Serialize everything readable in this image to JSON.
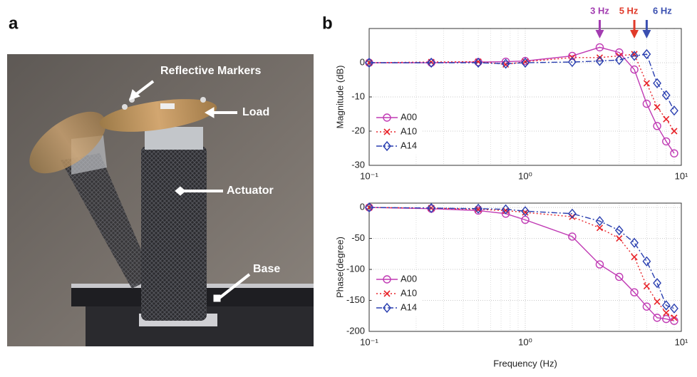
{
  "panel_labels": [
    "a",
    "b"
  ],
  "photo": {
    "labels": [
      "Reflective Markers",
      "Load",
      "Actuator",
      "Base"
    ]
  },
  "chart_data": [
    {
      "type": "line",
      "ylabel": "Magnitude (dB)",
      "xscale": "log",
      "grid": true,
      "legend": "lower left",
      "x": [
        0.1,
        0.25,
        0.5,
        0.75,
        1,
        2,
        3,
        4,
        5,
        6,
        7,
        8,
        9
      ],
      "xlim": [
        0.1,
        10
      ],
      "xticks": [
        {
          "value": 0.1,
          "label": "10⁻¹"
        },
        {
          "value": 1,
          "label": "10⁰"
        },
        {
          "value": 10,
          "label": "10¹"
        }
      ],
      "ylim": [
        -30,
        10
      ],
      "yticks": [
        -30,
        -20,
        -10,
        0
      ],
      "annotations": [
        {
          "text": "3 Hz",
          "x": 3,
          "color": "#a23cb0"
        },
        {
          "text": "5 Hz",
          "x": 5,
          "color": "#e03a2a"
        },
        {
          "text": "6 Hz",
          "x": 6,
          "color": "#3a4fb0"
        }
      ],
      "series": [
        {
          "name": "A00",
          "color": "#c03ab4",
          "marker": "circle",
          "linestyle": "solid",
          "values": [
            0,
            0,
            0.2,
            0.3,
            0.5,
            2,
            4.5,
            3,
            -2,
            -12,
            -18.5,
            -23,
            -26.5
          ]
        },
        {
          "name": "A10",
          "color": "#e8242a",
          "marker": "x",
          "linestyle": "dotted",
          "values": [
            0,
            0.2,
            0.3,
            -0.5,
            0.3,
            1.5,
            1.5,
            2,
            2.5,
            -6,
            -13,
            -16.5,
            -20
          ]
        },
        {
          "name": "A14",
          "color": "#2a3fb0",
          "marker": "diamond",
          "linestyle": "dashdot",
          "values": [
            0,
            0,
            0,
            -0.3,
            0,
            0.2,
            0.5,
            0.8,
            2,
            2.5,
            -6,
            -9.5,
            -14
          ]
        }
      ]
    },
    {
      "type": "line",
      "ylabel": "Phase(degree)",
      "xlabel": "Frequency (Hz)",
      "xscale": "log",
      "grid": true,
      "legend": "lower left",
      "x": [
        0.1,
        0.25,
        0.5,
        0.75,
        1,
        2,
        3,
        4,
        5,
        6,
        7,
        8,
        9
      ],
      "xlim": [
        0.1,
        10
      ],
      "xticks": [
        {
          "value": 0.1,
          "label": "10⁻¹"
        },
        {
          "value": 1,
          "label": "10⁰"
        },
        {
          "value": 10,
          "label": "10¹"
        }
      ],
      "ylim": [
        -200,
        7
      ],
      "yticks": [
        -200,
        -150,
        -100,
        -50,
        0
      ],
      "series": [
        {
          "name": "A00",
          "color": "#c03ab4",
          "marker": "circle",
          "linestyle": "solid",
          "values": [
            0,
            -2,
            -5,
            -10,
            -20,
            -47,
            -92,
            -112,
            -137,
            -160,
            -178,
            -180,
            -183
          ]
        },
        {
          "name": "A10",
          "color": "#e8242a",
          "marker": "x",
          "linestyle": "dotted",
          "values": [
            0,
            -1,
            -3,
            -5,
            -8,
            -15,
            -33,
            -50,
            -80,
            -127,
            -152,
            -170,
            -178
          ]
        },
        {
          "name": "A14",
          "color": "#2a3fb0",
          "marker": "diamond",
          "linestyle": "dashdot",
          "values": [
            0,
            -1,
            -2,
            -3,
            -6,
            -10,
            -22,
            -37,
            -57,
            -87,
            -122,
            -158,
            -163
          ]
        }
      ]
    }
  ]
}
